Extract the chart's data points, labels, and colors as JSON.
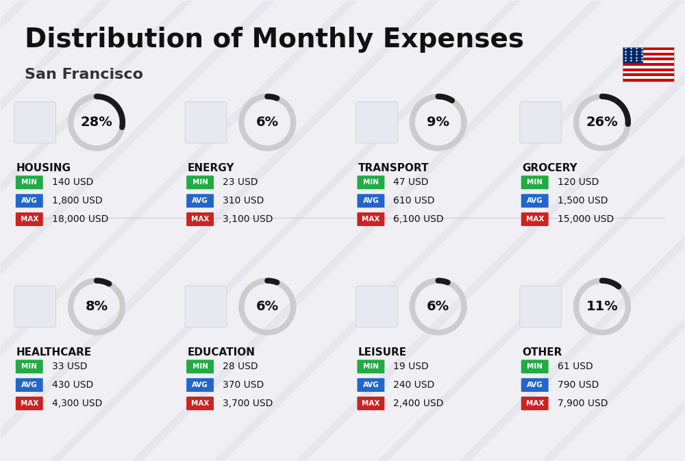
{
  "title": "Distribution of Monthly Expenses",
  "subtitle": "San Francisco",
  "background_color": "#f0eff4",
  "categories": [
    {
      "name": "HOUSING",
      "pct": 28,
      "min": "140 USD",
      "avg": "1,800 USD",
      "max": "18,000 USD",
      "row": 0,
      "col": 0
    },
    {
      "name": "ENERGY",
      "pct": 6,
      "min": "23 USD",
      "avg": "310 USD",
      "max": "3,100 USD",
      "row": 0,
      "col": 1
    },
    {
      "name": "TRANSPORT",
      "pct": 9,
      "min": "47 USD",
      "avg": "610 USD",
      "max": "6,100 USD",
      "row": 0,
      "col": 2
    },
    {
      "name": "GROCERY",
      "pct": 26,
      "min": "120 USD",
      "avg": "1,500 USD",
      "max": "15,000 USD",
      "row": 0,
      "col": 3
    },
    {
      "name": "HEALTHCARE",
      "pct": 8,
      "min": "33 USD",
      "avg": "430 USD",
      "max": "4,300 USD",
      "row": 1,
      "col": 0
    },
    {
      "name": "EDUCATION",
      "pct": 6,
      "min": "28 USD",
      "avg": "370 USD",
      "max": "3,700 USD",
      "row": 1,
      "col": 1
    },
    {
      "name": "LEISURE",
      "pct": 6,
      "min": "19 USD",
      "avg": "240 USD",
      "max": "2,400 USD",
      "row": 1,
      "col": 2
    },
    {
      "name": "OTHER",
      "pct": 11,
      "min": "61 USD",
      "avg": "790 USD",
      "max": "7,900 USD",
      "row": 1,
      "col": 3
    }
  ],
  "color_min": "#22aa44",
  "color_avg": "#2266cc",
  "color_max": "#cc2222",
  "color_label_min": "#ffffff",
  "color_label_avg": "#ffffff",
  "color_label_max": "#ffffff",
  "donut_filled": "#1a1a1a",
  "donut_empty": "#cccccc",
  "title_fontsize": 28,
  "subtitle_fontsize": 16,
  "category_fontsize": 11,
  "value_fontsize": 10,
  "pct_fontsize": 14
}
